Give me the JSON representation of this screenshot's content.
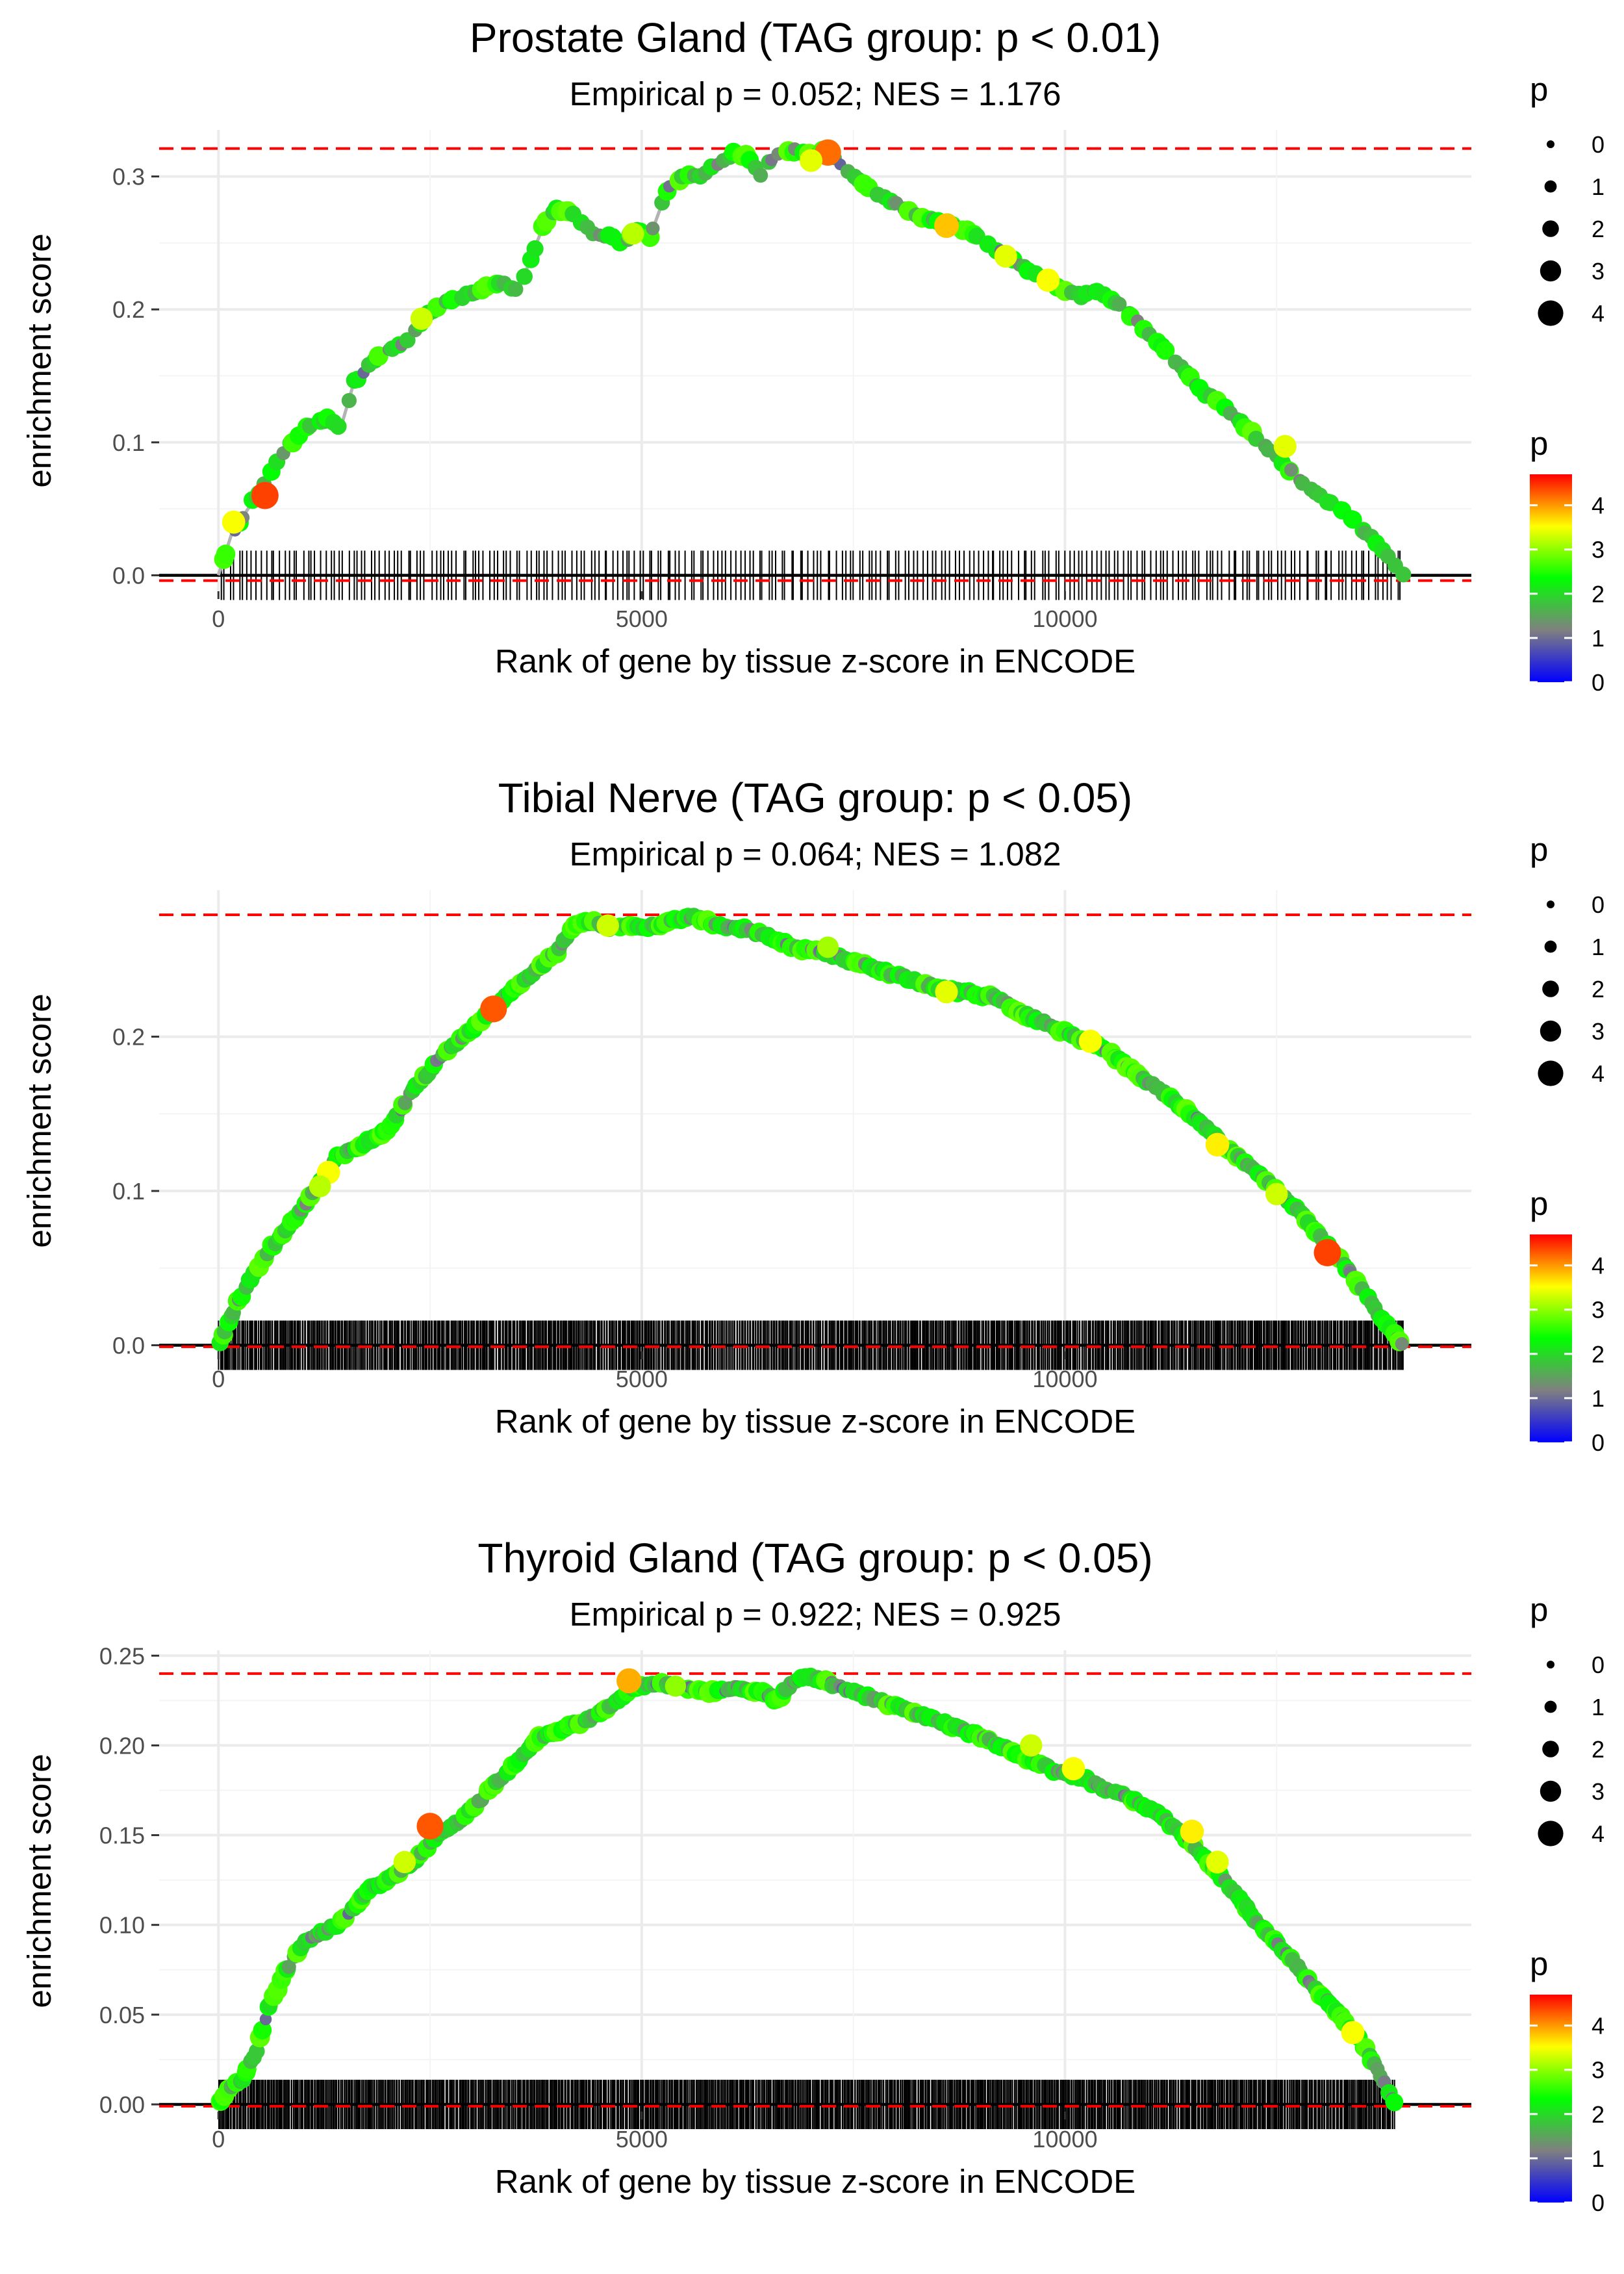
{
  "chart_data": [
    {
      "type": "line",
      "title": "Prostate Gland (TAG group: p < 0.01)",
      "subtitle": "Empirical p = 0.052; NES = 1.176",
      "xlabel": "Rank of gene by tissue z-score in ENCODE",
      "ylabel": "enrichment score",
      "xlim": [
        -700,
        14800
      ],
      "ylim": [
        -0.012,
        0.335
      ],
      "x_ticks": [
        0,
        5000,
        10000
      ],
      "x_tick_labels": [
        "0",
        "5000",
        "10000"
      ],
      "y_ticks": [
        0.0,
        0.1,
        0.2,
        0.3
      ],
      "y_tick_labels": [
        "0.0",
        "0.1",
        "0.2",
        "0.3"
      ],
      "max_line": 0.321,
      "min_line": -0.004,
      "n_genes": 14000,
      "hit_count": 260,
      "series": [
        {
          "name": "enrichment score",
          "x": [
            0,
            150,
            300,
            550,
            800,
            1100,
            1300,
            1450,
            1600,
            1800,
            2000,
            2200,
            2450,
            2700,
            2900,
            3100,
            3300,
            3550,
            3700,
            3850,
            4000,
            4200,
            4400,
            4600,
            4800,
            4950,
            5100,
            5300,
            5500,
            5700,
            5900,
            6100,
            6250,
            6400,
            6550,
            6700,
            6850,
            7000,
            7200,
            7400,
            7600,
            7800,
            8000,
            8300,
            8600,
            8900,
            9200,
            9500,
            9800,
            10000,
            10200,
            10400,
            10700,
            11000,
            11300,
            11600,
            12000,
            12400,
            12800,
            13200,
            13600,
            13800,
            14000
          ],
          "y": [
            0.0,
            0.03,
            0.045,
            0.07,
            0.095,
            0.115,
            0.118,
            0.112,
            0.145,
            0.16,
            0.168,
            0.175,
            0.195,
            0.205,
            0.21,
            0.215,
            0.22,
            0.215,
            0.24,
            0.265,
            0.275,
            0.272,
            0.258,
            0.255,
            0.25,
            0.26,
            0.255,
            0.29,
            0.3,
            0.3,
            0.31,
            0.318,
            0.315,
            0.3,
            0.315,
            0.318,
            0.32,
            0.315,
            0.32,
            0.305,
            0.295,
            0.285,
            0.28,
            0.27,
            0.265,
            0.258,
            0.245,
            0.232,
            0.22,
            0.215,
            0.21,
            0.215,
            0.2,
            0.182,
            0.162,
            0.14,
            0.12,
            0.095,
            0.07,
            0.052,
            0.03,
            0.015,
            0.0
          ]
        }
      ],
      "highlight_points": [
        {
          "x": 550,
          "y": 0.06,
          "p": 4.4
        },
        {
          "x": 180,
          "y": 0.04,
          "p": 3.5
        },
        {
          "x": 2400,
          "y": 0.193,
          "p": 3.3
        },
        {
          "x": 4900,
          "y": 0.257,
          "p": 3.2
        },
        {
          "x": 7200,
          "y": 0.318,
          "p": 4.2
        },
        {
          "x": 7000,
          "y": 0.312,
          "p": 3.4
        },
        {
          "x": 8600,
          "y": 0.263,
          "p": 3.8
        },
        {
          "x": 9300,
          "y": 0.24,
          "p": 3.4
        },
        {
          "x": 9800,
          "y": 0.222,
          "p": 3.5
        },
        {
          "x": 12600,
          "y": 0.097,
          "p": 3.4
        }
      ],
      "legend_size": {
        "title": "p",
        "labels": [
          "0",
          "1",
          "2",
          "3",
          "4"
        ]
      },
      "legend_color": {
        "title": "p",
        "labels": [
          "0",
          "1",
          "2",
          "3",
          "4"
        ],
        "min": 0,
        "max": 4.7,
        "colors": [
          "#0000ff",
          "#808080",
          "#00ff00",
          "#ffff00",
          "#ff0000"
        ]
      }
    },
    {
      "type": "line",
      "title": "Tibial Nerve (TAG group: p < 0.05)",
      "subtitle": "Empirical p = 0.064; NES = 1.082",
      "xlabel": "Rank of gene by tissue z-score in ENCODE",
      "ylabel": "enrichment score",
      "xlim": [
        -700,
        14800
      ],
      "ylim": [
        -0.004,
        0.295
      ],
      "x_ticks": [
        0,
        5000,
        10000
      ],
      "x_tick_labels": [
        "0",
        "5000",
        "10000"
      ],
      "y_ticks": [
        0.0,
        0.1,
        0.2
      ],
      "y_tick_labels": [
        "0.0",
        "0.1",
        "0.2"
      ],
      "max_line": 0.279,
      "min_line": -0.001,
      "n_genes": 14000,
      "hit_count": 900,
      "series": [
        {
          "name": "enrichment score",
          "x": [
            0,
            200,
            400,
            600,
            800,
            1000,
            1200,
            1400,
            1700,
            2000,
            2300,
            2600,
            2900,
            3200,
            3500,
            3800,
            4000,
            4200,
            4400,
            4600,
            4800,
            5000,
            5300,
            5600,
            5900,
            6200,
            6500,
            6800,
            7100,
            7400,
            7700,
            8000,
            8300,
            8600,
            8900,
            9200,
            9500,
            9800,
            10100,
            10400,
            10700,
            11000,
            11300,
            11600,
            11900,
            12200,
            12500,
            12800,
            13100,
            13400,
            13700,
            14000
          ],
          "y": [
            0.0,
            0.025,
            0.045,
            0.062,
            0.075,
            0.09,
            0.105,
            0.122,
            0.13,
            0.14,
            0.165,
            0.185,
            0.2,
            0.215,
            0.232,
            0.245,
            0.255,
            0.272,
            0.275,
            0.27,
            0.272,
            0.27,
            0.274,
            0.278,
            0.272,
            0.27,
            0.265,
            0.258,
            0.255,
            0.25,
            0.245,
            0.24,
            0.235,
            0.23,
            0.228,
            0.225,
            0.215,
            0.208,
            0.2,
            0.195,
            0.182,
            0.17,
            0.158,
            0.145,
            0.128,
            0.115,
            0.1,
            0.085,
            0.065,
            0.045,
            0.02,
            0.0
          ]
        }
      ],
      "highlight_points": [
        {
          "x": 3250,
          "y": 0.218,
          "p": 4.3
        },
        {
          "x": 1300,
          "y": 0.112,
          "p": 3.5
        },
        {
          "x": 1200,
          "y": 0.103,
          "p": 3.2
        },
        {
          "x": 4600,
          "y": 0.272,
          "p": 3.3
        },
        {
          "x": 7200,
          "y": 0.258,
          "p": 3.1
        },
        {
          "x": 8600,
          "y": 0.229,
          "p": 3.4
        },
        {
          "x": 10300,
          "y": 0.197,
          "p": 3.5
        },
        {
          "x": 11800,
          "y": 0.13,
          "p": 3.6
        },
        {
          "x": 12500,
          "y": 0.098,
          "p": 3.3
        },
        {
          "x": 13100,
          "y": 0.06,
          "p": 4.4
        }
      ],
      "legend_size": {
        "title": "p",
        "labels": [
          "0",
          "1",
          "2",
          "3",
          "4"
        ]
      },
      "legend_color": {
        "title": "p",
        "labels": [
          "0",
          "1",
          "2",
          "3",
          "4"
        ],
        "min": 0,
        "max": 4.7,
        "colors": [
          "#0000ff",
          "#808080",
          "#00ff00",
          "#ffff00",
          "#ff0000"
        ]
      }
    },
    {
      "type": "line",
      "title": "Thyroid Gland (TAG group: p < 0.05)",
      "subtitle": "Empirical p = 0.922; NES = 0.925",
      "xlabel": "Rank of gene by tissue z-score in ENCODE",
      "ylabel": "enrichment score",
      "xlim": [
        -700,
        14800
      ],
      "ylim": [
        -0.004,
        0.253
      ],
      "x_ticks": [
        0,
        5000,
        10000
      ],
      "x_tick_labels": [
        "0",
        "5000",
        "10000"
      ],
      "y_ticks": [
        0.0,
        0.05,
        0.1,
        0.15,
        0.2,
        0.25
      ],
      "y_tick_labels": [
        "0.00",
        "0.05",
        "0.10",
        "0.15",
        "0.20",
        "0.25"
      ],
      "max_line": 0.24,
      "min_line": -0.001,
      "n_genes": 13900,
      "hit_count": 950,
      "series": [
        {
          "name": "enrichment score",
          "x": [
            0,
            150,
            300,
            450,
            600,
            800,
            1000,
            1200,
            1400,
            1600,
            1800,
            2000,
            2300,
            2600,
            2900,
            3200,
            3500,
            3800,
            4100,
            4400,
            4700,
            4900,
            5200,
            5500,
            5800,
            6100,
            6400,
            6600,
            6800,
            7000,
            7200,
            7500,
            7800,
            8100,
            8400,
            8700,
            9000,
            9300,
            9600,
            9900,
            10200,
            10500,
            10800,
            11100,
            11400,
            11700,
            12000,
            12300,
            12600,
            12900,
            13200,
            13500,
            13700,
            13900
          ],
          "y": [
            0.0,
            0.01,
            0.015,
            0.03,
            0.055,
            0.075,
            0.09,
            0.095,
            0.1,
            0.11,
            0.12,
            0.125,
            0.135,
            0.15,
            0.16,
            0.175,
            0.19,
            0.205,
            0.21,
            0.215,
            0.225,
            0.232,
            0.235,
            0.232,
            0.23,
            0.232,
            0.23,
            0.225,
            0.236,
            0.238,
            0.235,
            0.23,
            0.225,
            0.22,
            0.215,
            0.21,
            0.205,
            0.198,
            0.192,
            0.185,
            0.182,
            0.175,
            0.17,
            0.162,
            0.15,
            0.135,
            0.118,
            0.1,
            0.085,
            0.068,
            0.052,
            0.035,
            0.018,
            0.0
          ]
        }
      ],
      "highlight_points": [
        {
          "x": 2500,
          "y": 0.155,
          "p": 4.3
        },
        {
          "x": 2200,
          "y": 0.135,
          "p": 3.3
        },
        {
          "x": 4850,
          "y": 0.236,
          "p": 3.9
        },
        {
          "x": 5400,
          "y": 0.233,
          "p": 3.0
        },
        {
          "x": 9600,
          "y": 0.2,
          "p": 3.3
        },
        {
          "x": 10100,
          "y": 0.187,
          "p": 3.5
        },
        {
          "x": 11500,
          "y": 0.152,
          "p": 3.6
        },
        {
          "x": 11800,
          "y": 0.135,
          "p": 3.4
        },
        {
          "x": 13400,
          "y": 0.04,
          "p": 3.5
        }
      ],
      "legend_size": {
        "title": "p",
        "labels": [
          "0",
          "1",
          "2",
          "3",
          "4"
        ]
      },
      "legend_color": {
        "title": "p",
        "labels": [
          "0",
          "1",
          "2",
          "3",
          "4"
        ],
        "min": 0,
        "max": 4.7,
        "colors": [
          "#0000ff",
          "#808080",
          "#00ff00",
          "#ffff00",
          "#ff0000"
        ]
      }
    }
  ]
}
